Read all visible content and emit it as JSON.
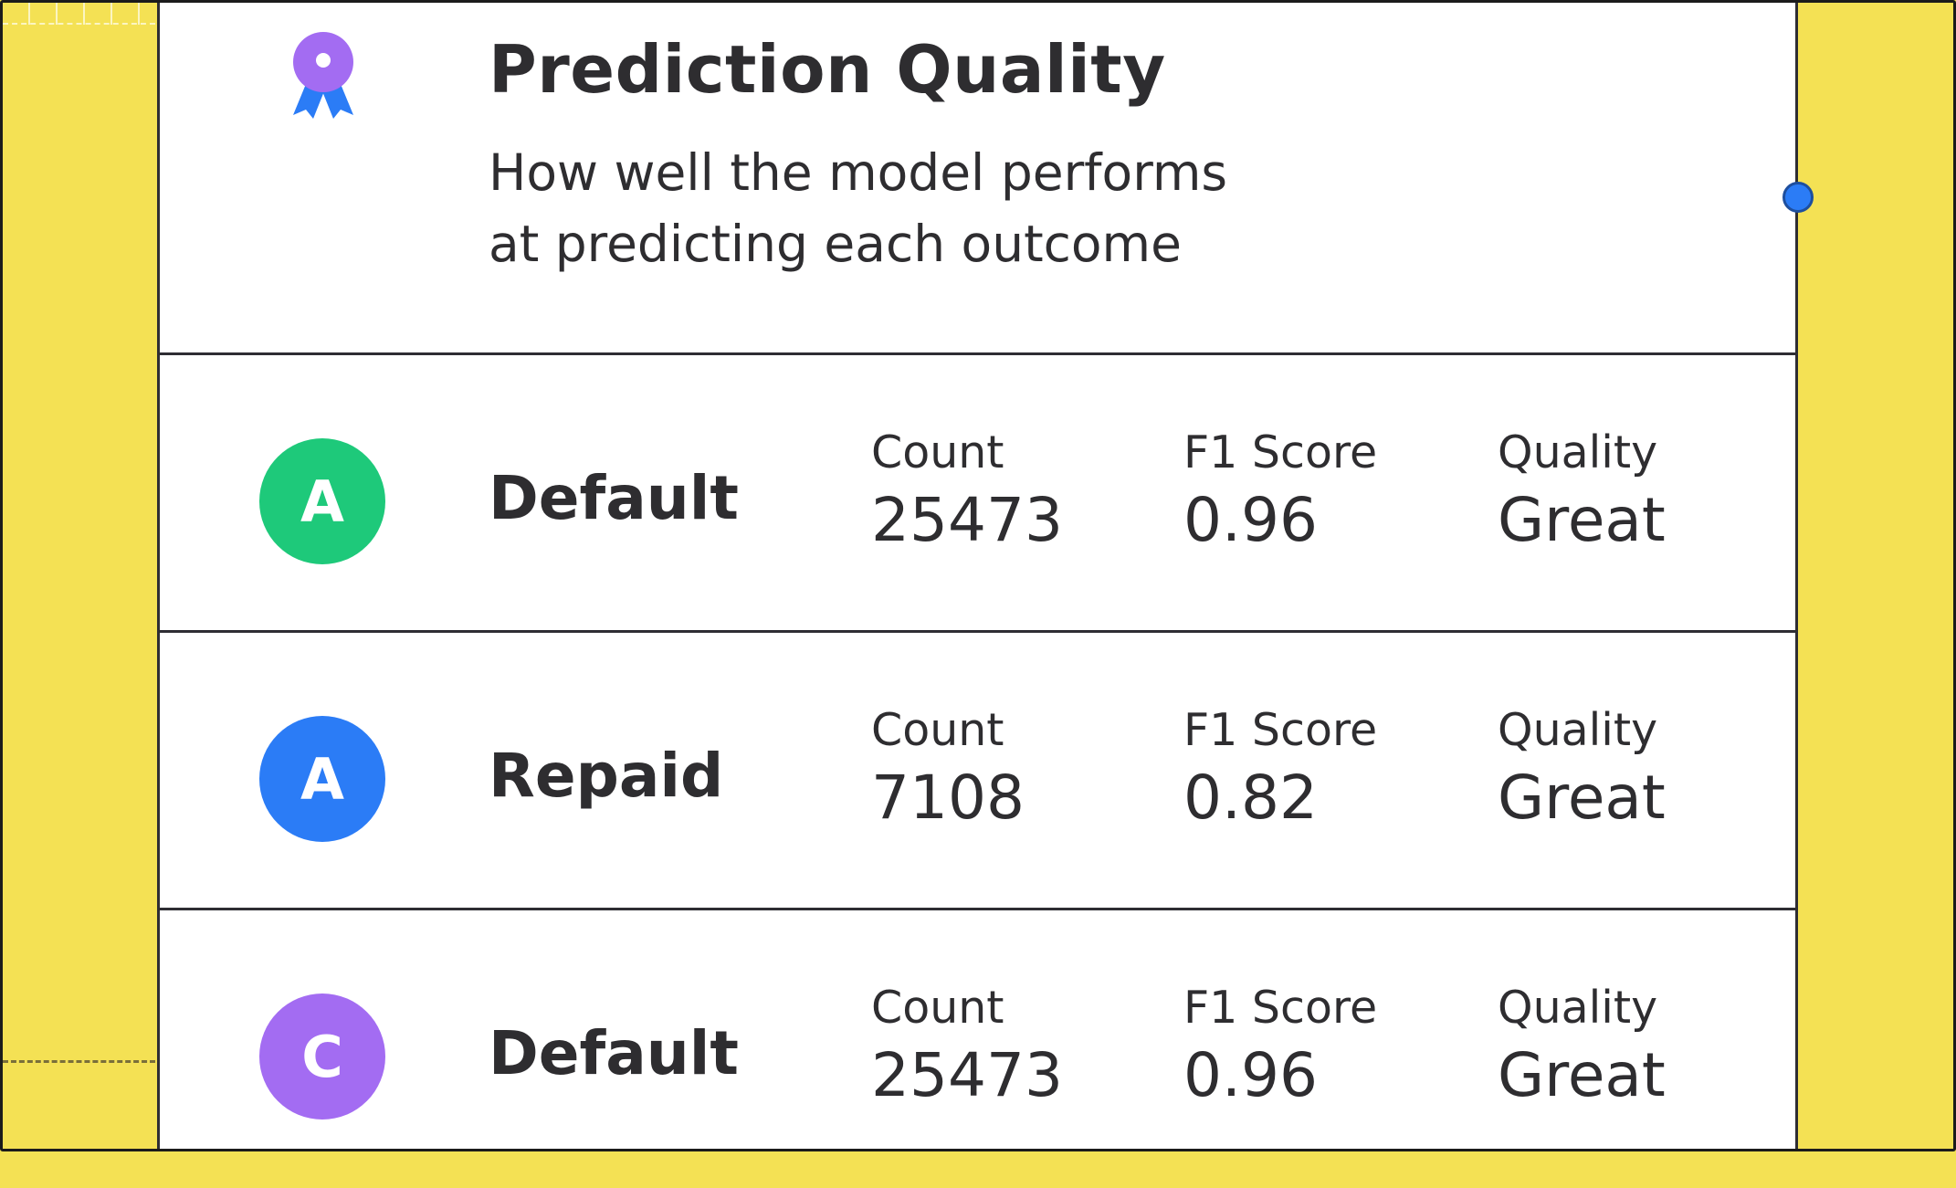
{
  "card": {
    "title": "Prediction Quality",
    "subtitle_line1": "How well the model performs",
    "subtitle_line2": "at predicting each outcome",
    "icon": "award-ribbon-icon"
  },
  "colors": {
    "background": "#f4e154",
    "card": "#ffffff",
    "border": "#2e2d33",
    "award_purple": "#a36cf2",
    "award_blue": "#2b7cf6",
    "handle_blue": "#2b7cf6"
  },
  "rows": [
    {
      "avatar_letter": "A",
      "avatar_color": "#1ec97a",
      "outcome": "Default",
      "count_label": "Count",
      "count": "25473",
      "f1_label": "F1 Score",
      "f1": "0.96",
      "quality_label": "Quality",
      "quality": "Great"
    },
    {
      "avatar_letter": "A",
      "avatar_color": "#2b7cf6",
      "outcome": "Repaid",
      "count_label": "Count",
      "count": "7108",
      "f1_label": "F1 Score",
      "f1": "0.82",
      "quality_label": "Quality",
      "quality": "Great"
    },
    {
      "avatar_letter": "C",
      "avatar_color": "#a36cf2",
      "outcome": "Default",
      "count_label": "Count",
      "count": "25473",
      "f1_label": "F1 Score",
      "f1": "0.96",
      "quality_label": "Quality",
      "quality": "Great"
    }
  ]
}
